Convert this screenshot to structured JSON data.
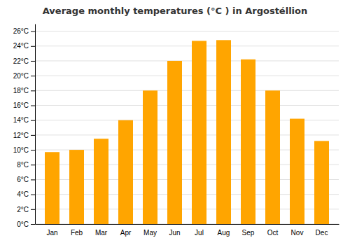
{
  "chart_data": {
    "type": "bar",
    "title": "Average monthly temperatures (°C ) in Argostéllion",
    "categories": [
      "Jan",
      "Feb",
      "Mar",
      "Apr",
      "May",
      "Jun",
      "Jul",
      "Aug",
      "Sep",
      "Oct",
      "Nov",
      "Dec"
    ],
    "values": [
      9.7,
      10.0,
      11.5,
      14.0,
      18.0,
      22.0,
      24.7,
      24.8,
      22.2,
      18.0,
      14.2,
      11.2
    ],
    "color": "#FFA500",
    "ylim": [
      0,
      27
    ],
    "yticks": [
      {
        "value": 0,
        "label": "0°C"
      },
      {
        "value": 2,
        "label": "2°C"
      },
      {
        "value": 4,
        "label": "4°C"
      },
      {
        "value": 6,
        "label": "6°C"
      },
      {
        "value": 8,
        "label": "8°C"
      },
      {
        "value": 10,
        "label": "10°C"
      },
      {
        "value": 12,
        "label": "12°C"
      },
      {
        "value": 14,
        "label": "14°C"
      },
      {
        "value": 16,
        "label": "16°C"
      },
      {
        "value": 18,
        "label": "18°C"
      },
      {
        "value": 20,
        "label": "20°C"
      },
      {
        "value": 22,
        "label": "22°C"
      },
      {
        "value": 24,
        "label": "24°C"
      },
      {
        "value": 26,
        "label": "26°C"
      }
    ],
    "grid": true
  }
}
